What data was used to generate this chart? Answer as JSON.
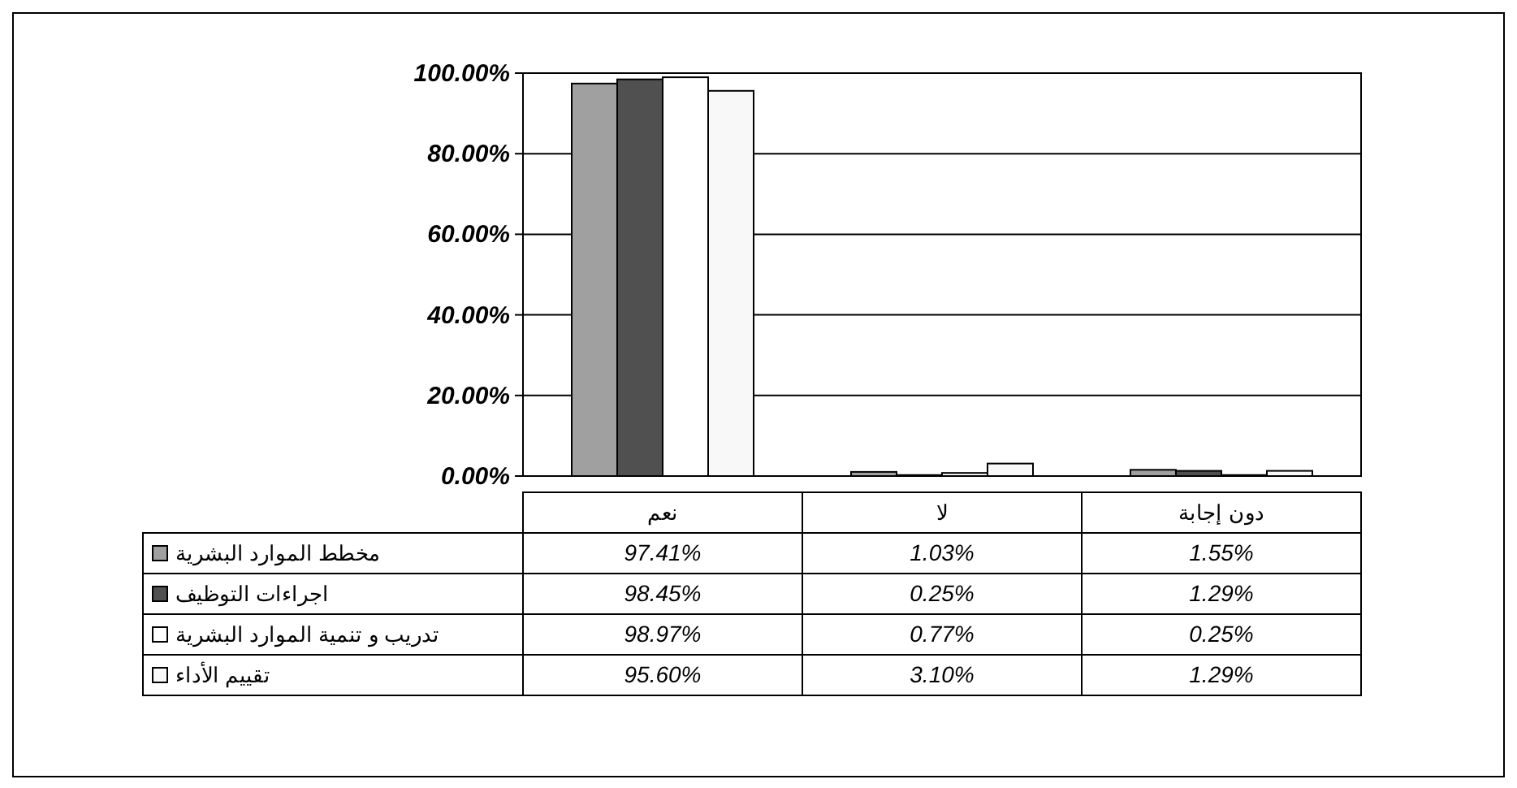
{
  "chart_data": {
    "type": "bar",
    "categories": [
      "نعم",
      "لا",
      "دون إجابة"
    ],
    "series": [
      {
        "name": "مخطط الموارد البشرية",
        "color": "#a0a0a0",
        "values": [
          97.41,
          1.03,
          1.55
        ],
        "value_labels": [
          "97.41%",
          "1.03%",
          "1.55%"
        ]
      },
      {
        "name": "اجراءات التوظيف",
        "color": "#505050",
        "values": [
          98.45,
          0.25,
          1.29
        ],
        "value_labels": [
          "98.45%",
          "0.25%",
          "1.29%"
        ]
      },
      {
        "name": "تدريب و تنمية الموارد البشرية",
        "color": "#ffffff",
        "values": [
          98.97,
          0.77,
          0.25
        ],
        "value_labels": [
          "98.97%",
          "0.77%",
          "0.25%"
        ]
      },
      {
        "name": "تقييم الأداء",
        "color": "#f8f8f8",
        "values": [
          95.6,
          3.1,
          1.29
        ],
        "value_labels": [
          "95.60%",
          "3.10%",
          "1.29%"
        ]
      }
    ],
    "ylim": [
      0,
      100
    ],
    "yticks": [
      {
        "value": 0,
        "label": "0.00%"
      },
      {
        "value": 20,
        "label": "20.00%"
      },
      {
        "value": 40,
        "label": "40.00%"
      },
      {
        "value": 60,
        "label": "60.00%"
      },
      {
        "value": 80,
        "label": "80.00%"
      },
      {
        "value": 100,
        "label": "100.00%"
      }
    ],
    "grid": "y",
    "legend": "bottom"
  }
}
